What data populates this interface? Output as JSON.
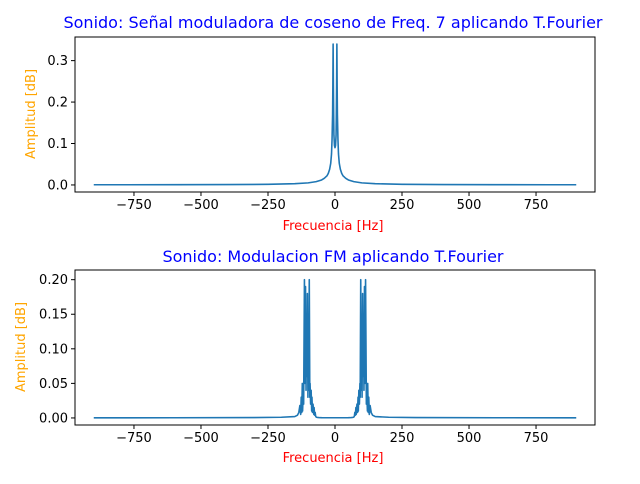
{
  "chart_data": [
    {
      "type": "line",
      "title": "Sonido: Señal moduladora de coseno de Freq. 7 aplicando T.Fourier",
      "xlabel": "Frecuencia [Hz]",
      "ylabel": "Amplitud [dB]",
      "xlim": [
        -970,
        970
      ],
      "ylim": [
        -0.017,
        0.357
      ],
      "xticks": [
        -750,
        -500,
        -250,
        0,
        250,
        500,
        750
      ],
      "xtick_labels": [
        "−750",
        "−500",
        "−250",
        "0",
        "250",
        "500",
        "750"
      ],
      "yticks": [
        0.0,
        0.1,
        0.2,
        0.3
      ],
      "ytick_labels": [
        "0.0",
        "0.1",
        "0.2",
        "0.3"
      ],
      "title_color": "#0000ff",
      "xlabel_color": "#ff0000",
      "ylabel_color": "#ffa500",
      "line_color": "#1f77b4",
      "grid": false,
      "series": [
        {
          "x": [
            -900,
            -800,
            -600,
            -400,
            -250,
            -150,
            -100,
            -70,
            -50,
            -40,
            -30,
            -25,
            -20,
            -16,
            -13,
            -11,
            -9,
            -8,
            -7,
            -6,
            -5,
            -4,
            -2,
            0,
            2,
            4,
            5,
            6,
            7,
            8,
            9,
            11,
            13,
            16,
            20,
            25,
            30,
            40,
            50,
            70,
            100,
            150,
            250,
            400,
            600,
            800,
            900
          ],
          "y": [
            0.0005,
            0.0005,
            0.0007,
            0.001,
            0.0015,
            0.003,
            0.005,
            0.008,
            0.012,
            0.016,
            0.022,
            0.028,
            0.038,
            0.052,
            0.075,
            0.11,
            0.17,
            0.24,
            0.34,
            0.24,
            0.17,
            0.12,
            0.095,
            0.09,
            0.095,
            0.12,
            0.17,
            0.24,
            0.34,
            0.24,
            0.17,
            0.11,
            0.075,
            0.052,
            0.038,
            0.028,
            0.022,
            0.016,
            0.012,
            0.008,
            0.005,
            0.003,
            0.0015,
            0.001,
            0.0007,
            0.0005,
            0.0005
          ]
        }
      ]
    },
    {
      "type": "line",
      "title": "Sonido: Modulacion FM aplicando T.Fourier",
      "xlabel": "Frecuencia [Hz]",
      "ylabel": "Amplitud [dB]",
      "xlim": [
        -970,
        970
      ],
      "ylim": [
        -0.0102,
        0.214
      ],
      "xticks": [
        -750,
        -500,
        -250,
        0,
        250,
        500,
        750
      ],
      "xtick_labels": [
        "−750",
        "−500",
        "−250",
        "0",
        "250",
        "500",
        "750"
      ],
      "yticks": [
        0.0,
        0.05,
        0.1,
        0.15,
        0.2
      ],
      "ytick_labels": [
        "0.00",
        "0.05",
        "0.10",
        "0.15",
        "0.20"
      ],
      "title_color": "#0000ff",
      "xlabel_color": "#ff0000",
      "ylabel_color": "#ffa500",
      "line_color": "#1f77b4",
      "grid": false,
      "series": [
        {
          "x": [
            -900,
            -600,
            -300,
            -200,
            -150,
            -140,
            -135,
            -131,
            -128,
            -126,
            -124,
            -122,
            -121,
            -119,
            -117,
            -114,
            -112,
            -110,
            -108,
            -107,
            -105,
            -103,
            -101,
            -100,
            -98,
            -96,
            -94,
            -93,
            -91,
            -89,
            -87,
            -86,
            -84,
            -82,
            -79,
            -78,
            -76,
            -74,
            -72,
            -69,
            -65,
            -60,
            -50,
            -20,
            0,
            20,
            50,
            60,
            65,
            69,
            72,
            74,
            76,
            78,
            79,
            82,
            84,
            86,
            87,
            89,
            91,
            93,
            94,
            96,
            98,
            100,
            101,
            103,
            105,
            107,
            108,
            110,
            112,
            114,
            117,
            119,
            121,
            122,
            124,
            126,
            128,
            131,
            135,
            140,
            150,
            200,
            300,
            600,
            900
          ],
          "y": [
            0.0002,
            0.0003,
            0.0006,
            0.001,
            0.002,
            0.004,
            0.008,
            0.018,
            0.005,
            0.03,
            0.008,
            0.05,
            0.01,
            0.03,
            0.02,
            0.2,
            0.05,
            0.19,
            0.04,
            0.12,
            0.06,
            0.18,
            0.03,
            0.15,
            0.04,
            0.2,
            0.03,
            0.05,
            0.02,
            0.04,
            0.01,
            0.03,
            0.008,
            0.02,
            0.005,
            0.015,
            0.004,
            0.008,
            0.002,
            0.001,
            0.0008,
            0.0006,
            0.0004,
            0.0003,
            0.0003,
            0.0003,
            0.0004,
            0.0006,
            0.0008,
            0.001,
            0.002,
            0.008,
            0.004,
            0.015,
            0.005,
            0.02,
            0.008,
            0.03,
            0.01,
            0.04,
            0.02,
            0.05,
            0.03,
            0.2,
            0.04,
            0.15,
            0.03,
            0.18,
            0.06,
            0.12,
            0.04,
            0.19,
            0.05,
            0.2,
            0.02,
            0.03,
            0.01,
            0.05,
            0.008,
            0.03,
            0.005,
            0.018,
            0.008,
            0.004,
            0.002,
            0.001,
            0.0006,
            0.0003,
            0.0002
          ]
        }
      ]
    }
  ]
}
